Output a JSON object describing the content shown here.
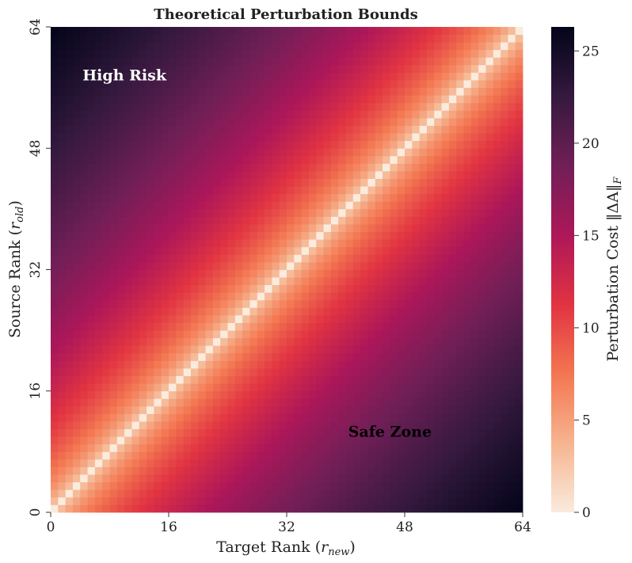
{
  "chart_data": {
    "type": "heatmap",
    "title": "Theoretical Perturbation Bounds",
    "xlabel": "Target Rank (",
    "xlabel_sub": "r",
    "xlabel_subscript": "new",
    "ylabel": "Source Rank (",
    "ylabel_sub": "r",
    "ylabel_subscript": "old",
    "colorbar_label": "Perturbation Cost ‖ΔA‖",
    "colorbar_subscript": "F",
    "x_range": [
      0,
      64
    ],
    "y_range": [
      0,
      64
    ],
    "grid_size": 64,
    "x_ticks": [
      "0",
      "16",
      "32",
      "48",
      "64"
    ],
    "y_ticks": [
      "0",
      "16",
      "32",
      "48",
      "64"
    ],
    "colorbar_ticks": [
      "0",
      "5",
      "10",
      "15",
      "20",
      "25"
    ],
    "value_range": [
      0,
      26.3
    ],
    "values_rule": "cost(x, y) = sqrt(|y - x|) x 3.3 approximately, zero on the diagonal",
    "sample_values": [
      {
        "x": 0,
        "y": 64,
        "value": 26.3
      },
      {
        "x": 64,
        "y": 0,
        "value": 26.3
      },
      {
        "x": 32,
        "y": 32,
        "value": 0
      },
      {
        "x": 16,
        "y": 32,
        "value": 13
      },
      {
        "x": 48,
        "y": 16,
        "value": 18.5
      }
    ],
    "annotations": [
      {
        "text": "High Risk",
        "x": 10,
        "y": 57.5,
        "color": "#ffffff"
      },
      {
        "text": "Safe Zone",
        "x": 46,
        "y": 10.5,
        "color": "#000000"
      }
    ],
    "colormap": [
      "#faebdd",
      "#f6b48f",
      "#f37651",
      "#e13342",
      "#ad1759",
      "#701f57",
      "#35193e",
      "#03051a"
    ]
  }
}
